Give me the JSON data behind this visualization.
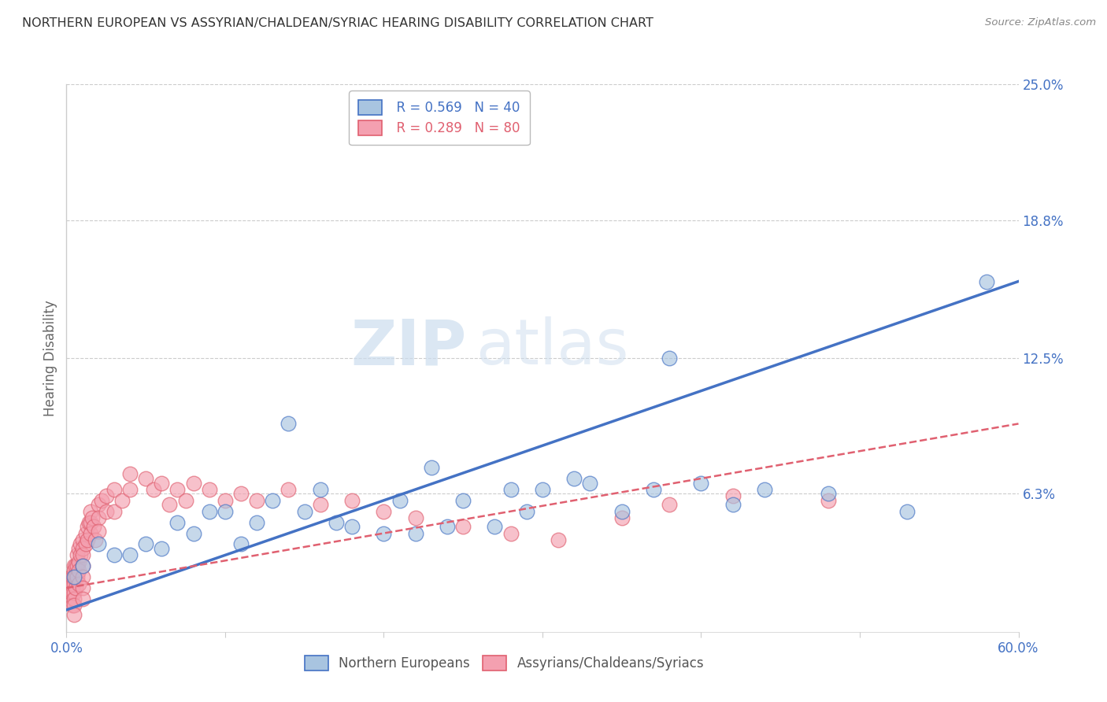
{
  "title": "NORTHERN EUROPEAN VS ASSYRIAN/CHALDEAN/SYRIAC HEARING DISABILITY CORRELATION CHART",
  "source": "Source: ZipAtlas.com",
  "ylabel": "Hearing Disability",
  "legend_label1_r": "R = 0.569",
  "legend_label1_n": "N = 40",
  "legend_label2_r": "R = 0.289",
  "legend_label2_n": "N = 80",
  "xlim": [
    0.0,
    0.6
  ],
  "ylim": [
    0.0,
    0.25
  ],
  "ytick_values": [
    0.0,
    0.063,
    0.125,
    0.188,
    0.25
  ],
  "ytick_labels": [
    "",
    "6.3%",
    "12.5%",
    "18.8%",
    "25.0%"
  ],
  "blue_color": "#A8C4E0",
  "pink_color": "#F4A0B0",
  "trendline_blue": "#4472C4",
  "trendline_pink": "#E06070",
  "background_color": "#FFFFFF",
  "watermark_zip": "ZIP",
  "watermark_atlas": "atlas",
  "blue_scatter_x": [
    0.005,
    0.01,
    0.02,
    0.03,
    0.04,
    0.05,
    0.06,
    0.07,
    0.08,
    0.09,
    0.1,
    0.11,
    0.12,
    0.13,
    0.14,
    0.15,
    0.16,
    0.17,
    0.18,
    0.2,
    0.21,
    0.22,
    0.23,
    0.24,
    0.25,
    0.27,
    0.28,
    0.29,
    0.3,
    0.32,
    0.33,
    0.35,
    0.37,
    0.38,
    0.4,
    0.42,
    0.44,
    0.48,
    0.53,
    0.58
  ],
  "blue_scatter_y": [
    0.025,
    0.03,
    0.04,
    0.035,
    0.035,
    0.04,
    0.038,
    0.05,
    0.045,
    0.055,
    0.055,
    0.04,
    0.05,
    0.06,
    0.095,
    0.055,
    0.065,
    0.05,
    0.048,
    0.045,
    0.06,
    0.045,
    0.075,
    0.048,
    0.06,
    0.048,
    0.065,
    0.055,
    0.065,
    0.07,
    0.068,
    0.055,
    0.065,
    0.125,
    0.068,
    0.058,
    0.065,
    0.063,
    0.055,
    0.16
  ],
  "pink_scatter_x": [
    0.002,
    0.002,
    0.003,
    0.003,
    0.003,
    0.004,
    0.004,
    0.004,
    0.005,
    0.005,
    0.005,
    0.005,
    0.005,
    0.005,
    0.005,
    0.005,
    0.006,
    0.006,
    0.006,
    0.007,
    0.007,
    0.007,
    0.008,
    0.008,
    0.008,
    0.008,
    0.009,
    0.009,
    0.01,
    0.01,
    0.01,
    0.01,
    0.01,
    0.01,
    0.01,
    0.012,
    0.012,
    0.013,
    0.013,
    0.014,
    0.015,
    0.015,
    0.015,
    0.016,
    0.017,
    0.018,
    0.02,
    0.02,
    0.02,
    0.022,
    0.025,
    0.025,
    0.03,
    0.03,
    0.035,
    0.04,
    0.04,
    0.05,
    0.055,
    0.06,
    0.065,
    0.07,
    0.075,
    0.08,
    0.09,
    0.1,
    0.11,
    0.12,
    0.14,
    0.16,
    0.18,
    0.2,
    0.22,
    0.25,
    0.28,
    0.31,
    0.35,
    0.38,
    0.42,
    0.48
  ],
  "pink_scatter_y": [
    0.02,
    0.015,
    0.025,
    0.022,
    0.018,
    0.025,
    0.018,
    0.012,
    0.03,
    0.028,
    0.025,
    0.022,
    0.018,
    0.015,
    0.012,
    0.008,
    0.03,
    0.025,
    0.02,
    0.035,
    0.03,
    0.025,
    0.038,
    0.032,
    0.028,
    0.022,
    0.04,
    0.035,
    0.042,
    0.038,
    0.035,
    0.03,
    0.025,
    0.02,
    0.015,
    0.045,
    0.04,
    0.048,
    0.042,
    0.05,
    0.055,
    0.05,
    0.045,
    0.052,
    0.048,
    0.042,
    0.058,
    0.052,
    0.046,
    0.06,
    0.062,
    0.055,
    0.065,
    0.055,
    0.06,
    0.072,
    0.065,
    0.07,
    0.065,
    0.068,
    0.058,
    0.065,
    0.06,
    0.068,
    0.065,
    0.06,
    0.063,
    0.06,
    0.065,
    0.058,
    0.06,
    0.055,
    0.052,
    0.048,
    0.045,
    0.042,
    0.052,
    0.058,
    0.062,
    0.06
  ],
  "blue_trend_x": [
    0.0,
    0.6
  ],
  "blue_trend_y": [
    0.01,
    0.16
  ],
  "pink_trend_x": [
    0.0,
    0.6
  ],
  "pink_trend_y": [
    0.02,
    0.095
  ]
}
